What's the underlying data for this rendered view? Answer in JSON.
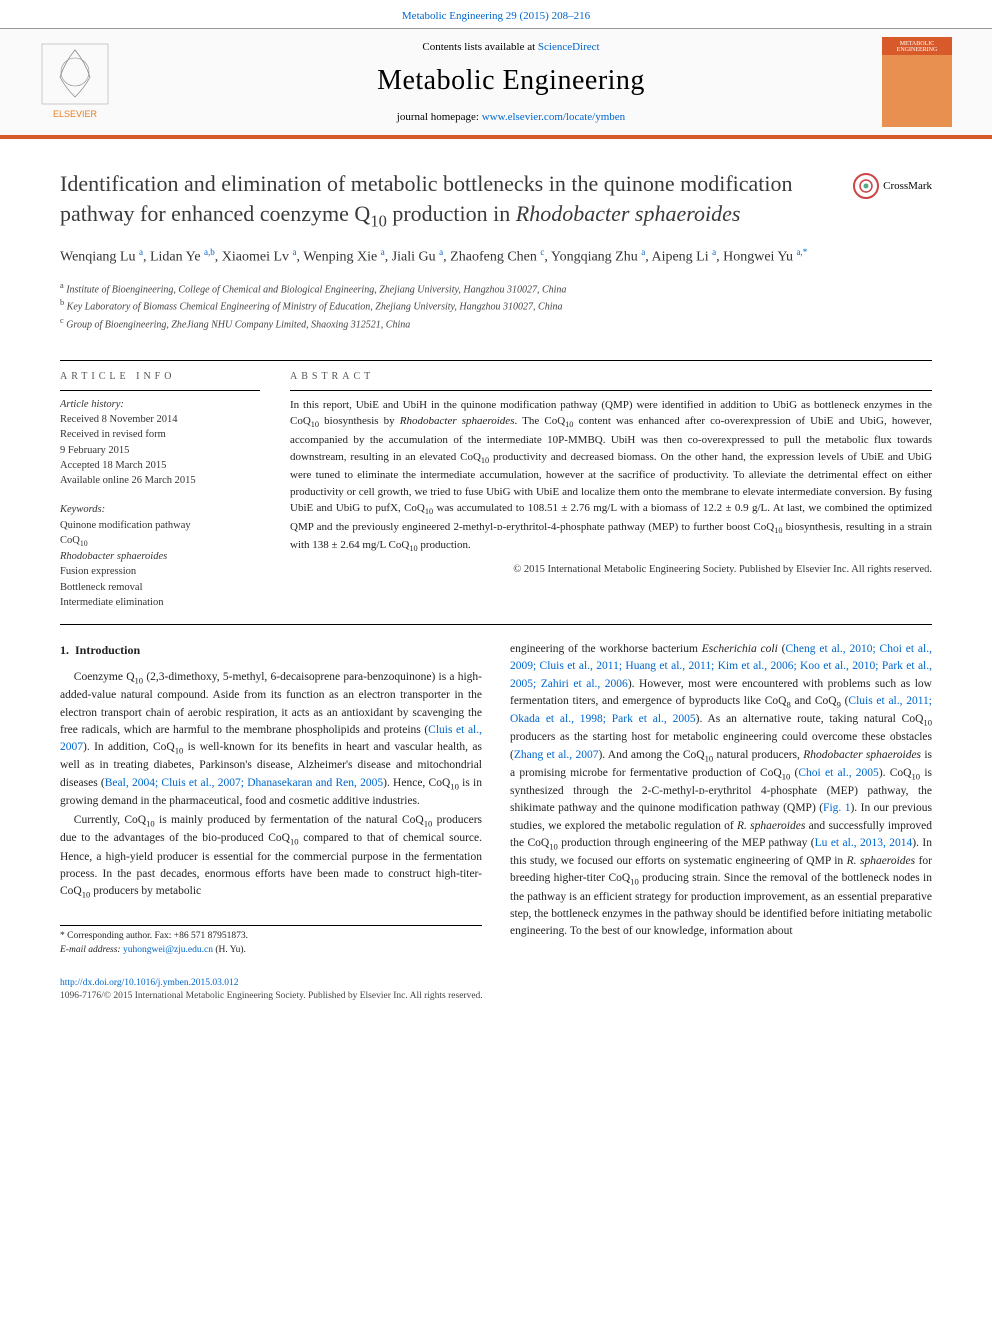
{
  "top_link": "Metabolic Engineering 29 (2015) 208–216",
  "header": {
    "contents_prefix": "Contents lists available at ",
    "contents_link": "ScienceDirect",
    "journal_name": "Metabolic Engineering",
    "homepage_prefix": "journal homepage: ",
    "homepage_link": "www.elsevier.com/locate/ymben",
    "cover_text": "METABOLIC ENGINEERING",
    "elsevier_label": "ELSEVIER"
  },
  "article": {
    "title_html": "Identification and elimination of metabolic bottlenecks in the quinone modification pathway for enhanced coenzyme Q<sub>10</sub> production in <i>Rhodobacter sphaeroides</i>",
    "crossmark_label": "CrossMark",
    "authors_html": "Wenqiang Lu <sup>a</sup>, Lidan Ye <sup>a,b</sup>, Xiaomei Lv <sup>a</sup>, Wenping Xie <sup>a</sup>, Jiali Gu <sup>a</sup>, Zhaofeng Chen <sup>c</sup>, Yongqiang Zhu <sup>a</sup>, Aipeng Li <sup>a</sup>, Hongwei Yu <sup>a,*</sup>",
    "affiliations": [
      "a Institute of Bioengineering, College of Chemical and Biological Engineering, Zhejiang University, Hangzhou 310027, China",
      "b Key Laboratory of Biomass Chemical Engineering of Ministry of Education, Zhejiang University, Hangzhou 310027, China",
      "c Group of Bioengineering, ZheJiang NHU Company Limited, Shaoxing 312521, China"
    ]
  },
  "info": {
    "heading": "ARTICLE INFO",
    "history_label": "Article history:",
    "history_lines": [
      "Received 8 November 2014",
      "Received in revised form",
      "9 February 2015",
      "Accepted 18 March 2015",
      "Available online 26 March 2015"
    ],
    "keywords_label": "Keywords:",
    "keywords_html": [
      "Quinone modification pathway",
      "CoQ<sub>10</sub>",
      "<i>Rhodobacter sphaeroides</i>",
      "Fusion expression",
      "Bottleneck removal",
      "Intermediate elimination"
    ]
  },
  "abstract": {
    "heading": "ABSTRACT",
    "text_html": "In this report, UbiE and UbiH in the quinone modification pathway (QMP) were identified in addition to UbiG as bottleneck enzymes in the CoQ<sub>10</sub> biosynthesis by <i>Rhodobacter sphaeroides</i>. The CoQ<sub>10</sub> content was enhanced after co-overexpression of UbiE and UbiG, however, accompanied by the accumulation of the intermediate 10P-MMBQ. UbiH was then co-overexpressed to pull the metabolic flux towards downstream, resulting in an elevated CoQ<sub>10</sub> productivity and decreased biomass. On the other hand, the expression levels of UbiE and UbiG were tuned to eliminate the intermediate accumulation, however at the sacrifice of productivity. To alleviate the detrimental effect on either productivity or cell growth, we tried to fuse UbiG with UbiE and localize them onto the membrane to elevate intermediate conversion. By fusing UbiE and UbiG to pufX, CoQ<sub>10</sub> was accumulated to 108.51 ± 2.76 mg/L with a biomass of 12.2 ± 0.9 g/L. At last, we combined the optimized QMP and the previously engineered 2-methyl-ᴅ-erythritol-4-phosphate pathway (MEP) to further boost CoQ<sub>10</sub> biosynthesis, resulting in a strain with 138 ± 2.64 mg/L CoQ<sub>10</sub> production.",
    "copyright": "© 2015 International Metabolic Engineering Society. Published by Elsevier Inc. All rights reserved."
  },
  "body": {
    "section_number": "1.",
    "section_title": "Introduction",
    "left_paragraphs_html": [
      "Coenzyme Q<sub>10</sub> (2,3-dimethoxy, 5-methyl, 6-decaisoprene para-benzoquinone) is a high-added-value natural compound. Aside from its function as an electron transporter in the electron transport chain of aerobic respiration, it acts as an antioxidant by scavenging the free radicals, which are harmful to the membrane phospholipids and proteins (<span class=\"ref-link\">Cluis et al., 2007</span>). In addition, CoQ<sub>10</sub> is well-known for its benefits in heart and vascular health, as well as in treating diabetes, Parkinson's disease, Alzheimer's disease and mitochondrial diseases (<span class=\"ref-link\">Beal, 2004; Cluis et al., 2007; Dhanasekaran and Ren, 2005</span>). Hence, CoQ<sub>10</sub> is in growing demand in the pharmaceutical, food and cosmetic additive industries.",
      "Currently, CoQ<sub>10</sub> is mainly produced by fermentation of the natural CoQ<sub>10</sub> producers due to the advantages of the bio-produced CoQ<sub>10</sub> compared to that of chemical source. Hence, a high-yield producer is essential for the commercial purpose in the fermentation process. In the past decades, enormous efforts have been made to construct high-titer-CoQ<sub>10</sub> producers by metabolic"
    ],
    "right_paragraph_html": "engineering of the workhorse bacterium <i>Escherichia coli</i> (<span class=\"ref-link\">Cheng et al., 2010; Choi et al., 2009; Cluis et al., 2011; Huang et al., 2011; Kim et al., 2006; Koo et al., 2010; Park et al., 2005; Zahiri et al., 2006</span>). However, most were encountered with problems such as low fermentation titers, and emergence of byproducts like CoQ<sub>8</sub> and CoQ<sub>9</sub> (<span class=\"ref-link\">Cluis et al., 2011; Okada et al., 1998; Park et al., 2005</span>). As an alternative route, taking natural CoQ<sub>10</sub> producers as the starting host for metabolic engineering could overcome these obstacles (<span class=\"ref-link\">Zhang et al., 2007</span>). And among the CoQ<sub>10</sub> natural producers, <i>Rhodobacter sphaeroides</i> is a promising microbe for fermentative production of CoQ<sub>10</sub> (<span class=\"ref-link\">Choi et al., 2005</span>). CoQ<sub>10</sub> is synthesized through the 2-C-methyl-ᴅ-erythritol 4-phosphate (MEP) pathway, the shikimate pathway and the quinone modification pathway (QMP) (<span class=\"ref-link\">Fig. 1</span>). In our previous studies, we explored the metabolic regulation of <i>R. sphaeroides</i> and successfully improved the CoQ<sub>10</sub> production through engineering of the MEP pathway (<span class=\"ref-link\">Lu et al., 2013, 2014</span>). In this study, we focused our efforts on systematic engineering of QMP in <i>R. sphaeroides</i> for breeding higher-titer CoQ<sub>10</sub> producing strain. Since the removal of the bottleneck nodes in the pathway is an efficient strategy for production improvement, as an essential preparative step, the bottleneck enzymes in the pathway should be identified before initiating metabolic engineering. To the best of our knowledge, information about"
  },
  "footnote": {
    "corresponding": "* Corresponding author. Fax: +86 571 87951873.",
    "email_label": "E-mail address: ",
    "email": "yuhongwei@zju.edu.cn",
    "email_suffix": " (H. Yu)."
  },
  "footer": {
    "doi": "http://dx.doi.org/10.1016/j.ymben.2015.03.012",
    "issn_line": "1096-7176/© 2015 International Metabolic Engineering Society. Published by Elsevier Inc. All rights reserved."
  },
  "colors": {
    "accent": "#d85a2a",
    "link": "#0066cc",
    "text": "#222222",
    "muted": "#555555"
  }
}
